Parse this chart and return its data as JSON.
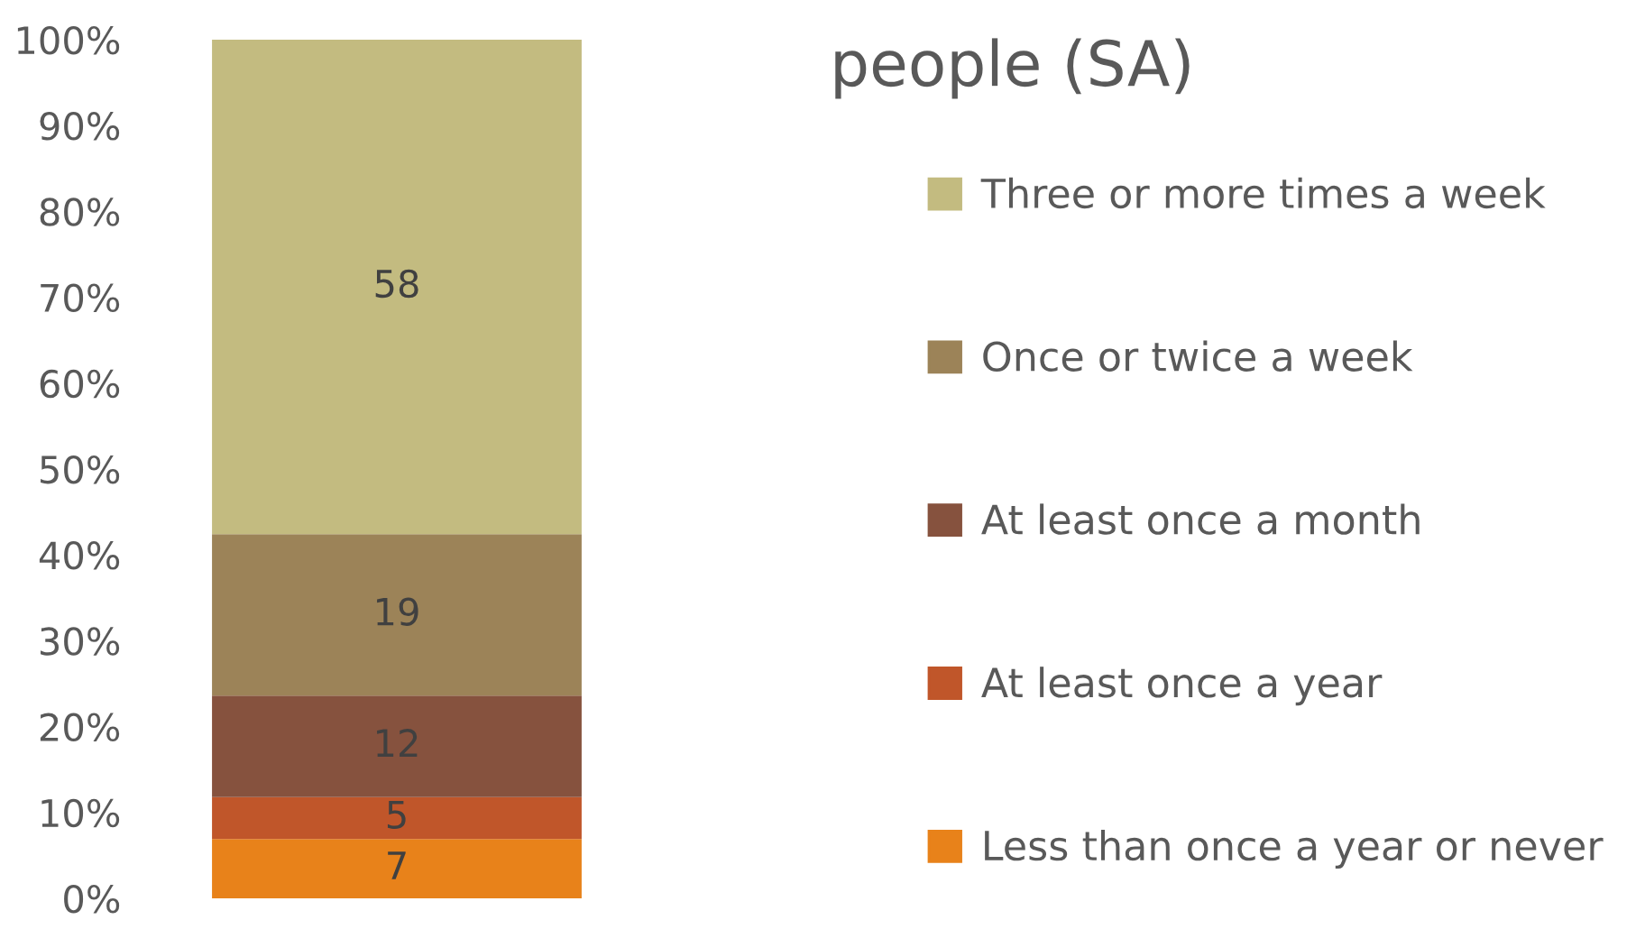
{
  "chart_data": {
    "type": "bar",
    "stacked": true,
    "title": "people (SA)",
    "categories": [
      null
    ],
    "series": [
      {
        "name": "Less than once a year or never",
        "color": "#e8821a",
        "values": [
          6.9
        ],
        "value_labels": [
          "7"
        ]
      },
      {
        "name": "At least once a year",
        "color": "#c0562a",
        "values": [
          4.9
        ],
        "value_labels": [
          "5"
        ]
      },
      {
        "name": "At least once a month",
        "color": "#86523e",
        "values": [
          11.8
        ],
        "value_labels": [
          "12"
        ]
      },
      {
        "name": "Once or twice a week",
        "color": "#9c8358",
        "values": [
          18.8
        ],
        "value_labels": [
          "19"
        ]
      },
      {
        "name": "Three or more times a week",
        "color": "#c3bb80",
        "values": [
          57.6
        ],
        "value_labels": [
          "58"
        ]
      }
    ],
    "ylim": [
      0,
      100
    ],
    "yticks": [
      {
        "value": 0,
        "label": "0%"
      },
      {
        "value": 10,
        "label": "10%"
      },
      {
        "value": 20,
        "label": "20%"
      },
      {
        "value": 30,
        "label": "30%"
      },
      {
        "value": 40,
        "label": "40%"
      },
      {
        "value": 50,
        "label": "50%"
      },
      {
        "value": 60,
        "label": "60%"
      },
      {
        "value": 70,
        "label": "70%"
      },
      {
        "value": 80,
        "label": "80%"
      },
      {
        "value": 90,
        "label": "90%"
      },
      {
        "value": 100,
        "label": "100%"
      }
    ],
    "grid": false,
    "legend": "right"
  }
}
